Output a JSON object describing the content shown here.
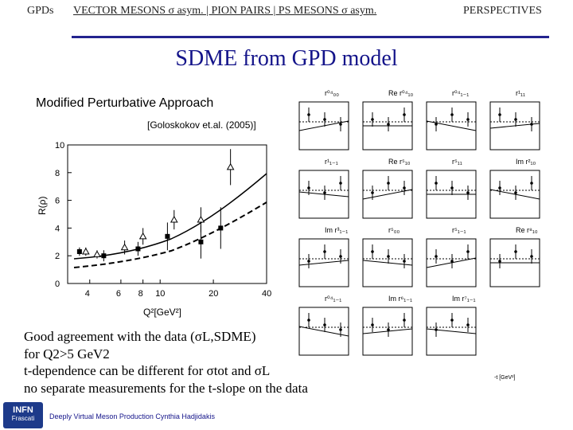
{
  "nav": {
    "gpds": "GPDs",
    "main": "VECTOR MESONS  σ asym. | PION PAIRS | PS MESONS  σ asym.",
    "perspectives": "PERSPECTIVES"
  },
  "title": "SDME from GPD model",
  "subtitle": "Modified Perturbative Approach",
  "citation": "[Goloskokov et.al. (2005)]",
  "chart_data": {
    "type": "scatter",
    "xlabel": "Q²[GeV²]",
    "ylabel": "R(ρ)",
    "xticks": [
      "4",
      "6",
      "8",
      "10",
      "20",
      "40"
    ],
    "yticks": [
      "0",
      "2",
      "4",
      "6",
      "8",
      "10"
    ],
    "ylim": [
      0,
      10
    ],
    "series": [
      {
        "marker": "filled-square",
        "x": [
          3.5,
          4.8,
          7.5,
          11,
          17,
          22
        ],
        "y": [
          2.3,
          2.0,
          2.5,
          3.4,
          3.0,
          4.0
        ],
        "err": [
          0.3,
          0.4,
          0.5,
          1.0,
          1.2,
          1.5
        ]
      },
      {
        "marker": "open-triangle",
        "x": [
          3.8,
          4.4,
          6.3,
          8.0,
          12,
          17,
          25
        ],
        "y": [
          2.3,
          2.1,
          2.6,
          3.4,
          4.6,
          4.6,
          8.4
        ],
        "err": [
          0.3,
          0.3,
          0.5,
          0.6,
          0.7,
          0.9,
          1.3
        ]
      }
    ]
  },
  "sdme_grid": {
    "labels": [
      "r⁰⁴₀₀",
      "Re r⁰⁴₁₀",
      "r⁰⁴₁₋₁",
      "r¹₁₁",
      "r¹₁₋₁",
      "Re r⁵₁₀",
      "r⁵₁₁",
      "Im r²₁₀",
      "Im r³₁₋₁",
      "r⁵₀₀",
      "r⁵₁₋₁",
      "Re r⁸₁₀",
      "r⁰⁴₁₋₁",
      "Im r⁶₁₋₁",
      "Im r⁷₁₋₁"
    ],
    "axis_note": "-t [GeV²]"
  },
  "bullets": {
    "b1": "Good agreement with the data (σL,SDME)",
    "b2": "for Q2>5 GeV2",
    "b3": "t-dependence can be different for σtot and σL",
    "b4": "no separate measurements for the t-slope on the data"
  },
  "footer": {
    "text": "Deeply Virtual Meson Production Cynthia Hadjidakis"
  },
  "logo": {
    "line1": "INFN",
    "line2": "Frascati"
  }
}
